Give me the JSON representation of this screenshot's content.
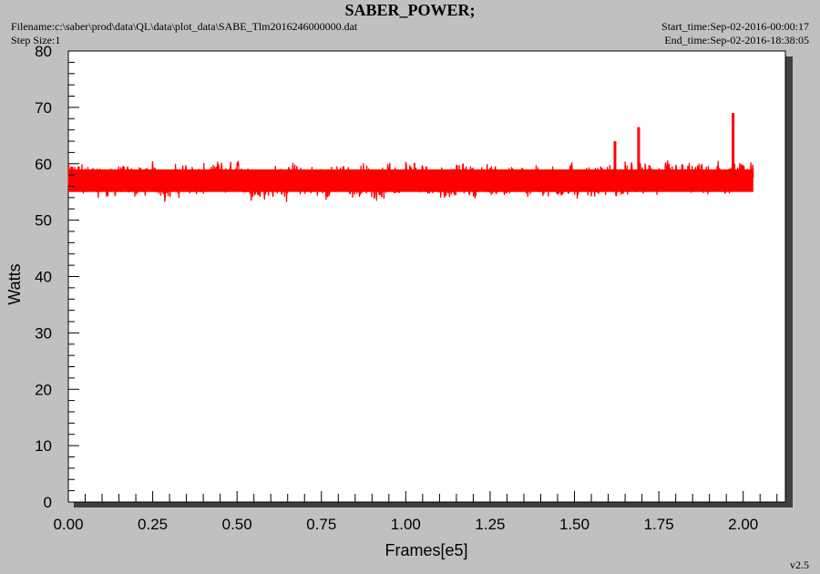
{
  "header": {
    "filename": "Filename:c:\\saber\\prod\\data\\QL\\data\\plot_data\\SABE_Tlm2016246000000.dat",
    "step_size": "Step Size:1",
    "start_time": "Start_time:Sep-02-2016-00:00:17",
    "end_time": "End_time:Sep-02-2016-18:38:05",
    "version": "v2.5"
  },
  "colors": {
    "series": "#ff0000",
    "plot_bg": "#ffffff",
    "page_bg": "#c0c0c0",
    "shadow": "#404040"
  },
  "chart_data": {
    "type": "line",
    "title": "SABER_POWER;",
    "xlabel": "Frames[e5]",
    "ylabel": "Watts",
    "xlim": [
      0,
      2.125
    ],
    "ylim": [
      0,
      80
    ],
    "xticks": [
      "0.00",
      "0.25",
      "0.50",
      "0.75",
      "1.00",
      "1.25",
      "1.50",
      "1.75",
      "2.00"
    ],
    "yticks": [
      "0",
      "10",
      "20",
      "30",
      "40",
      "50",
      "60",
      "70",
      "80"
    ],
    "grid": false,
    "series": [
      {
        "name": "",
        "color": "#ff0000",
        "x_range": [
          0,
          2.03
        ],
        "baseline": 57,
        "band": [
          54,
          60
        ],
        "spikes": [
          {
            "x": 0.01,
            "y": 59.5
          },
          {
            "x": 1.62,
            "y": 64
          },
          {
            "x": 1.69,
            "y": 66.5
          },
          {
            "x": 1.97,
            "y": 69
          }
        ]
      }
    ]
  }
}
